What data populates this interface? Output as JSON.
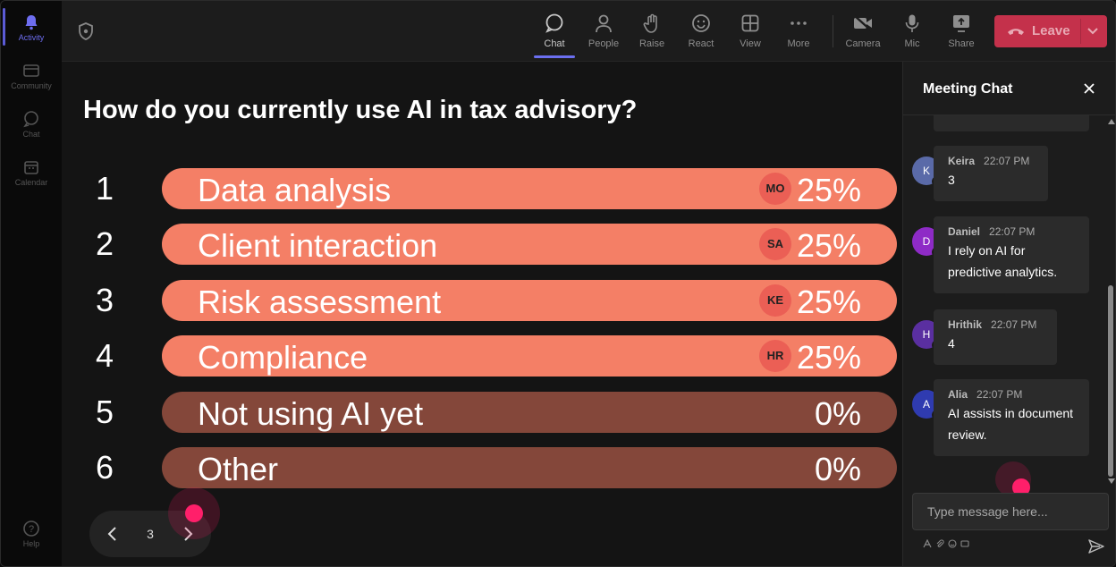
{
  "rail": {
    "items": [
      {
        "label": "Activity",
        "icon": "bell-icon",
        "active": true
      },
      {
        "label": "Community",
        "icon": "community-icon"
      },
      {
        "label": "Chat",
        "icon": "chat-icon"
      },
      {
        "label": "Calendar",
        "icon": "calendar-icon"
      },
      {
        "label": "Help",
        "icon": "help-icon"
      }
    ]
  },
  "toolbar": {
    "chat": "Chat",
    "people": "People",
    "raise": "Raise",
    "react": "React",
    "view": "View",
    "more": "More",
    "camera": "Camera",
    "mic": "Mic",
    "share": "Share",
    "leave": "Leave"
  },
  "poll": {
    "question": "How do you currently use AI in tax advisory?",
    "options": [
      {
        "num": "1",
        "label": "Data analysis",
        "pct": "25%",
        "percent": 25,
        "voter": "MO"
      },
      {
        "num": "2",
        "label": "Client interaction",
        "pct": "25%",
        "percent": 25,
        "voter": "SA"
      },
      {
        "num": "3",
        "label": "Risk assessment",
        "pct": "25%",
        "percent": 25,
        "voter": "KE"
      },
      {
        "num": "4",
        "label": "Compliance",
        "pct": "25%",
        "percent": 25,
        "voter": "HR"
      },
      {
        "num": "5",
        "label": "Not using AI yet",
        "pct": "0%",
        "percent": 0
      },
      {
        "num": "6",
        "label": "Other",
        "pct": "0%",
        "percent": 0
      }
    ],
    "page": "3"
  },
  "chat": {
    "title": "Meeting Chat",
    "messages": [
      {
        "initial": "K",
        "name": "Keira",
        "time": "22:07 PM",
        "text": "3",
        "color": "#5a6aa8"
      },
      {
        "initial": "D",
        "name": "Daniel",
        "time": "22:07 PM",
        "text": "I rely on AI for predictive analytics.",
        "color": "#8e2bc6"
      },
      {
        "initial": "H",
        "name": "Hrithik",
        "time": "22:07 PM",
        "text": "4",
        "color": "#5a2fa0"
      },
      {
        "initial": "A",
        "name": "Alia",
        "time": "22:07 PM",
        "text": "AI assists in document review.",
        "color": "#2f3bb0"
      }
    ],
    "input_placeholder": "Type message here..."
  },
  "colors": {
    "bar_active": "#f47f66",
    "bar_zero": "#84473a",
    "leave": "#c4314b",
    "accent": "#6b6ff0"
  }
}
